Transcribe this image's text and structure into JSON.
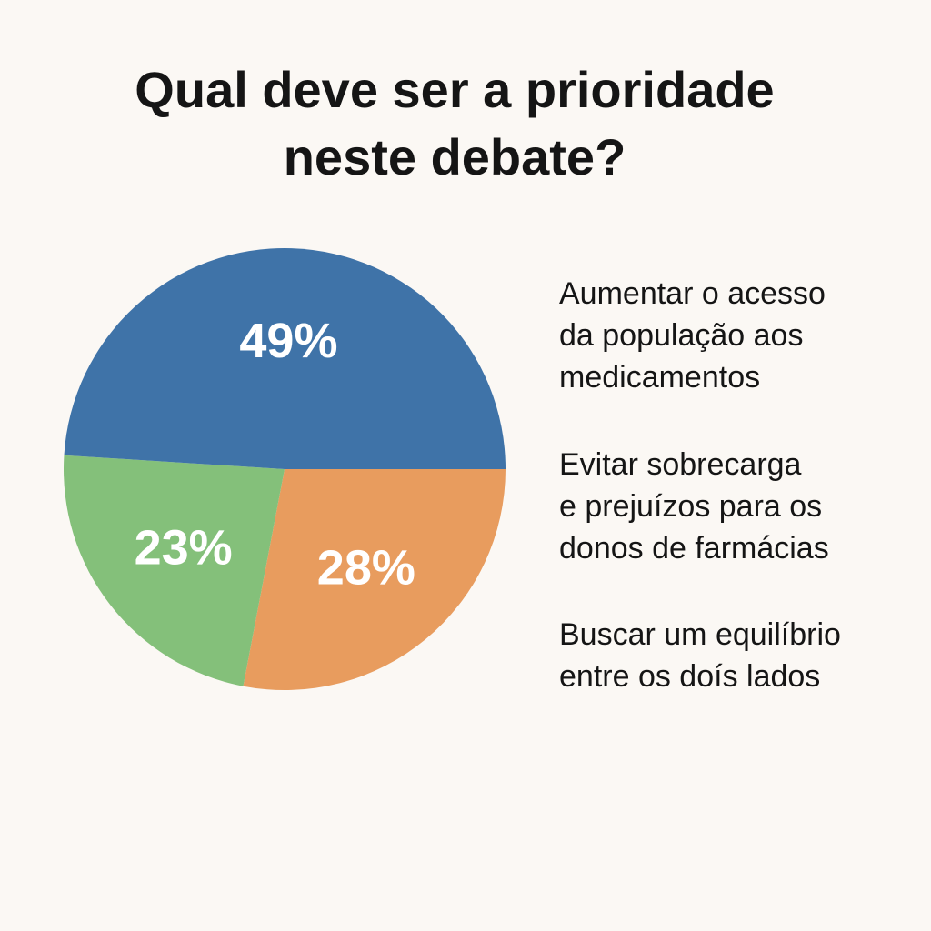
{
  "chart_data": {
    "type": "pie",
    "title_lines": [
      "Qual deve ser a prioridade",
      "neste debate?"
    ],
    "slices": [
      {
        "name": "Evitar sobrecarga e prejuízos para os donos de farmácias",
        "value": 28,
        "label": "28%",
        "color": "#e89c5e",
        "legend_lines": [
          "Evitar sobrecarga",
          "e prejuízos para os",
          "donos de farmácias"
        ]
      },
      {
        "name": "Buscar um equilíbrio entre os doís lados",
        "value": 23,
        "label": "23%",
        "color": "#84c07a",
        "legend_lines": [
          "Buscar um equilíbrio",
          "entre os doís lados"
        ]
      },
      {
        "name": "Aumentar o acesso da população aos medicamentos",
        "value": 49,
        "label": "49%",
        "color": "#3f73a8",
        "legend_lines": [
          "Aumentar o acesso",
          "da população aos",
          "medicamentos"
        ]
      }
    ],
    "legend_placement": "right"
  }
}
